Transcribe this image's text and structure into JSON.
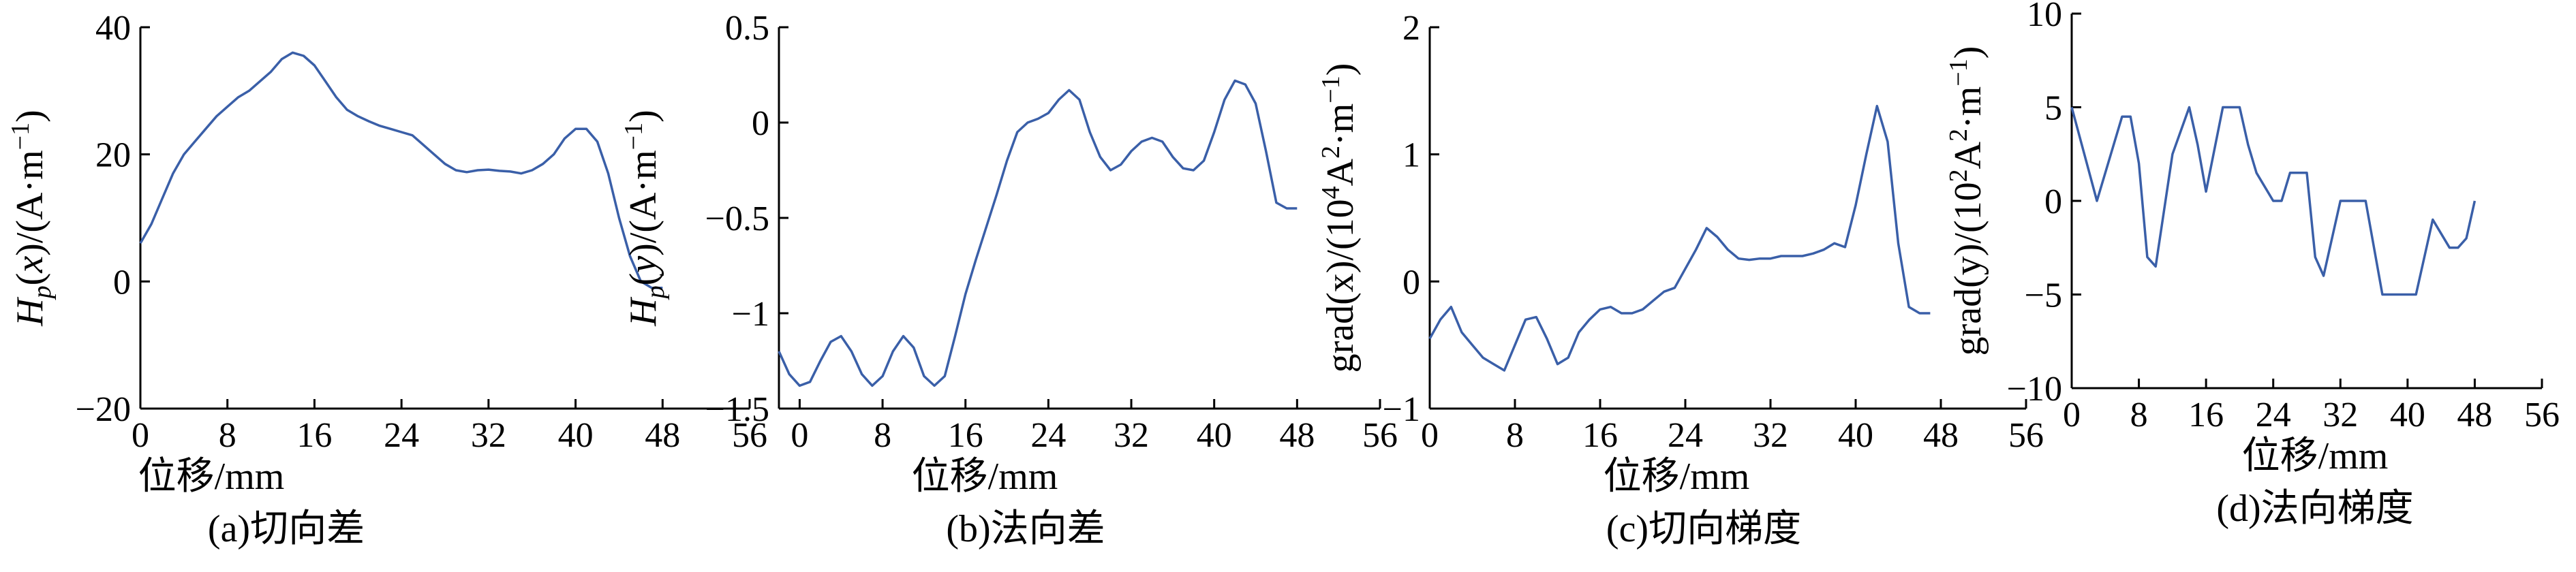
{
  "chart_data": [
    {
      "type": "line",
      "caption": "(a)切向差",
      "xlabel": "位移/mm",
      "ylabel": {
        "italic_main": "H",
        "sub": "p",
        "paren_open": "(",
        "var": "x",
        "rest": ")/(A·m",
        "sup": "−1",
        "close": ")"
      },
      "xlim": [
        0,
        56
      ],
      "ylim": [
        -20,
        40
      ],
      "xticks": [
        0,
        8,
        16,
        24,
        32,
        40,
        48,
        56
      ],
      "xtick_labels": [
        "0",
        "8",
        "16",
        "24",
        "32",
        "40",
        "48",
        "56"
      ],
      "yticks": [
        -20,
        0,
        20,
        40
      ],
      "ytick_labels": [
        "−20",
        "0",
        "20",
        "40"
      ],
      "series": [
        {
          "color": "#3a5fa8",
          "x": [
            0,
            1,
            2,
            3,
            4,
            5,
            6,
            7,
            8,
            9,
            10,
            11,
            12,
            13,
            14,
            15,
            16,
            17,
            18,
            19,
            20,
            21,
            22,
            23,
            24,
            25,
            26,
            27,
            28,
            29,
            30,
            31,
            32,
            33,
            34,
            35,
            36,
            37,
            38,
            39,
            40,
            41,
            42,
            43,
            44,
            45,
            46,
            47,
            48
          ],
          "y": [
            6,
            9,
            13,
            17,
            20,
            22,
            24,
            26,
            27.5,
            29,
            30,
            31.5,
            33,
            35,
            36,
            35.5,
            34,
            31.5,
            29,
            27,
            26,
            25.2,
            24.5,
            24,
            23.5,
            23,
            21.5,
            20,
            18.5,
            17.5,
            17.2,
            17.5,
            17.6,
            17.4,
            17.3,
            17,
            17.5,
            18.5,
            20,
            22.5,
            24,
            24,
            22,
            17,
            10,
            4,
            0,
            -1,
            -1
          ]
        }
      ]
    },
    {
      "type": "line",
      "caption": "(b)法向差",
      "xlabel": "位移/mm",
      "ylabel": {
        "italic_main": "H",
        "sub": "p",
        "paren_open": "(",
        "var": "y",
        "rest": ")/(A·m",
        "sup": "−1",
        "close": ")"
      },
      "xlim": [
        -2,
        56
      ],
      "ylim": [
        -1.5,
        0.5
      ],
      "xticks": [
        0,
        8,
        16,
        24,
        32,
        40,
        48,
        56
      ],
      "xtick_labels": [
        "0",
        "8",
        "16",
        "24",
        "32",
        "40",
        "48",
        "56"
      ],
      "yticks": [
        -1.5,
        -1,
        -0.5,
        0,
        0.5
      ],
      "ytick_labels": [
        "−1.5",
        "−1",
        "−0.5",
        "0",
        "0.5"
      ],
      "series": [
        {
          "color": "#3a5fa8",
          "x": [
            -2,
            -1,
            0,
            1,
            2,
            3,
            4,
            5,
            6,
            7,
            8,
            9,
            10,
            11,
            12,
            13,
            14,
            15,
            16,
            17,
            18,
            19,
            20,
            21,
            22,
            23,
            24,
            25,
            26,
            27,
            28,
            29,
            30,
            31,
            32,
            33,
            34,
            35,
            36,
            37,
            38,
            39,
            40,
            41,
            42,
            43,
            44,
            45,
            46,
            47,
            48
          ],
          "y": [
            -1.2,
            -1.32,
            -1.38,
            -1.36,
            -1.25,
            -1.15,
            -1.12,
            -1.2,
            -1.32,
            -1.38,
            -1.33,
            -1.2,
            -1.12,
            -1.18,
            -1.33,
            -1.38,
            -1.33,
            -1.12,
            -0.9,
            -0.72,
            -0.55,
            -0.38,
            -0.2,
            -0.05,
            0,
            0.02,
            0.05,
            0.12,
            0.17,
            0.12,
            -0.05,
            -0.18,
            -0.25,
            -0.22,
            -0.15,
            -0.1,
            -0.08,
            -0.1,
            -0.18,
            -0.24,
            -0.25,
            -0.2,
            -0.05,
            0.12,
            0.22,
            0.2,
            0.1,
            -0.15,
            -0.42,
            -0.45,
            -0.45
          ]
        }
      ]
    },
    {
      "type": "line",
      "caption": "(c)切向梯度",
      "xlabel": "位移/mm",
      "ylabel": {
        "main": "grad(x)/(10",
        "sup1": "4",
        "mid": "A",
        "sup2": "2",
        "rest": "·m",
        "sup3": "−1",
        "close": ")"
      },
      "xlim": [
        0,
        56
      ],
      "ylim": [
        -1,
        2
      ],
      "xticks": [
        0,
        8,
        16,
        24,
        32,
        40,
        48,
        56
      ],
      "xtick_labels": [
        "0",
        "8",
        "16",
        "24",
        "32",
        "40",
        "48",
        "56"
      ],
      "yticks": [
        -1,
        0,
        1,
        2
      ],
      "ytick_labels": [
        "−1",
        "0",
        "1",
        "2"
      ],
      "series": [
        {
          "color": "#3a5fa8",
          "x": [
            0,
            1,
            2,
            3,
            4,
            5,
            6,
            7,
            8,
            9,
            10,
            11,
            12,
            13,
            14,
            15,
            16,
            17,
            18,
            19,
            20,
            21,
            22,
            23,
            24,
            25,
            26,
            27,
            28,
            29,
            30,
            31,
            32,
            33,
            34,
            35,
            36,
            37,
            38,
            39,
            40,
            41,
            42,
            43,
            44,
            45,
            46,
            47
          ],
          "y": [
            -0.45,
            -0.3,
            -0.2,
            -0.4,
            -0.5,
            -0.6,
            -0.65,
            -0.7,
            -0.5,
            -0.3,
            -0.28,
            -0.45,
            -0.65,
            -0.6,
            -0.4,
            -0.3,
            -0.22,
            -0.2,
            -0.25,
            -0.25,
            -0.22,
            -0.15,
            -0.08,
            -0.05,
            0.1,
            0.25,
            0.42,
            0.35,
            0.25,
            0.18,
            0.17,
            0.18,
            0.18,
            0.2,
            0.2,
            0.2,
            0.22,
            0.25,
            0.3,
            0.27,
            0.6,
            1.0,
            1.38,
            1.1,
            0.3,
            -0.2,
            -0.25,
            -0.25
          ]
        }
      ]
    },
    {
      "type": "line",
      "caption": "(d)法向梯度",
      "xlabel": "位移/mm",
      "ylabel": {
        "main": "grad(y)/(10",
        "sup1": "2",
        "mid": "A",
        "sup2": "2",
        "rest": "·m",
        "sup3": "−1",
        "close": ")"
      },
      "xlim": [
        0,
        56
      ],
      "ylim": [
        -10,
        10
      ],
      "xticks": [
        0,
        8,
        16,
        24,
        32,
        40,
        48,
        56
      ],
      "xtick_labels": [
        "0",
        "8",
        "16",
        "24",
        "32",
        "40",
        "48",
        "56"
      ],
      "yticks": [
        -10,
        -5,
        0,
        5,
        10
      ],
      "ytick_labels": [
        "−10",
        "−5",
        "0",
        "5",
        "10"
      ],
      "series": [
        {
          "color": "#3a5fa8",
          "x": [
            0,
            3,
            6,
            7,
            8,
            9,
            10,
            12,
            14,
            15,
            16,
            18,
            19,
            20,
            21,
            22,
            24,
            25,
            26,
            28,
            29,
            30,
            32,
            34,
            35,
            37,
            38,
            40,
            41,
            42,
            43,
            45,
            46,
            47,
            48
          ],
          "y": [
            5,
            0,
            4.5,
            4.5,
            2,
            -3,
            -3.5,
            2.5,
            5,
            3,
            0.5,
            5,
            5,
            5,
            3,
            1.5,
            0,
            0,
            1.5,
            1.5,
            -3,
            -4,
            0,
            0,
            0,
            -5,
            -5,
            -5,
            -5,
            -3,
            -1,
            -2.5,
            -2.5,
            -2,
            0
          ]
        }
      ]
    }
  ]
}
